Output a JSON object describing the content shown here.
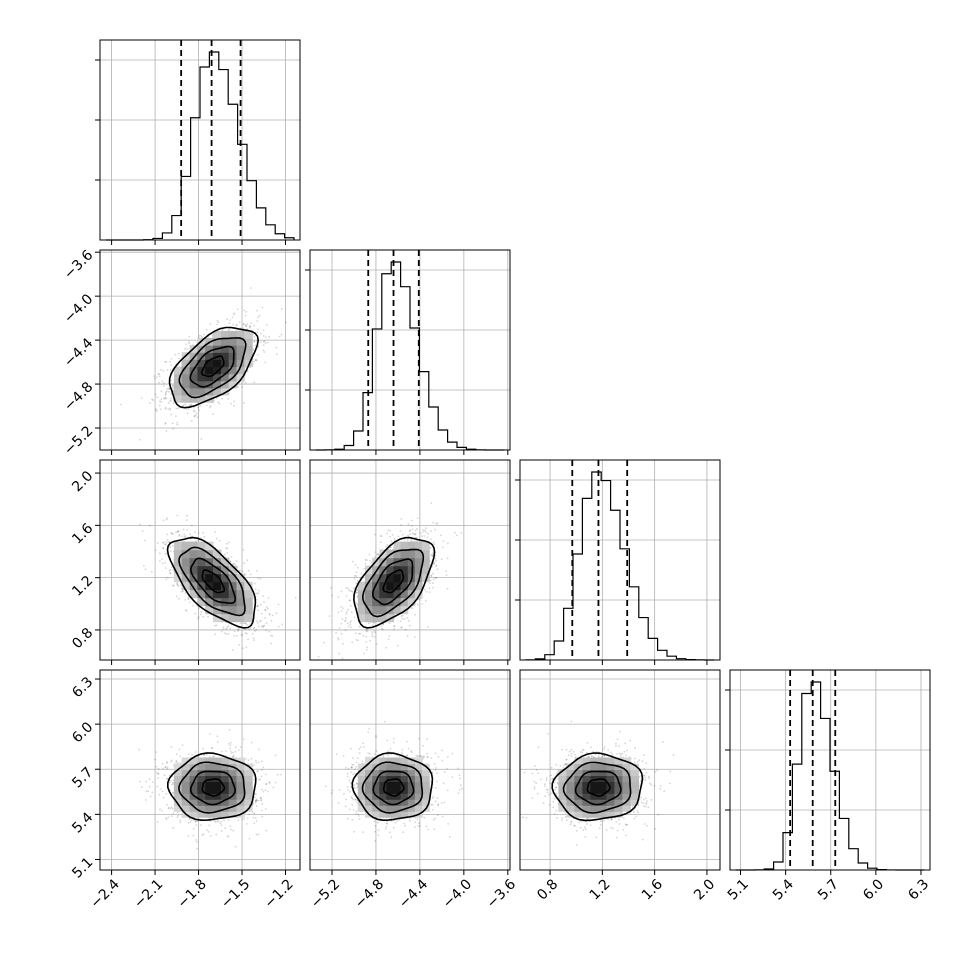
{
  "chart_data": {
    "type": "corner",
    "grid": true,
    "parameters": [
      {
        "mean": -1.7,
        "sd": 0.15,
        "quantiles": [
          -1.92,
          -1.71,
          -1.51
        ],
        "range": [
          -2.48,
          -1.1
        ],
        "ticks": [
          -2.4,
          -2.1,
          -1.8,
          -1.5,
          -1.2
        ],
        "tick_labels": [
          "−2.4",
          "−2.1",
          "−1.8",
          "−1.5",
          "−1.2"
        ]
      },
      {
        "mean": -4.64,
        "sd": 0.18,
        "quantiles": [
          -4.87,
          -4.64,
          -4.41
        ],
        "range": [
          -5.4,
          -3.58
        ],
        "ticks": [
          -5.2,
          -4.8,
          -4.4,
          -4.0,
          -3.6
        ],
        "tick_labels": [
          "−5.2",
          "−4.8",
          "−4.4",
          "−4.0",
          "−3.6"
        ]
      },
      {
        "mean": 1.17,
        "sd": 0.17,
        "quantiles": [
          0.97,
          1.17,
          1.39
        ],
        "range": [
          0.57,
          2.1
        ],
        "ticks": [
          0.8,
          1.2,
          1.6,
          2.0
        ],
        "tick_labels": [
          "0.8",
          "1.2",
          "1.6",
          "2.0"
        ]
      },
      {
        "mean": 5.58,
        "sd": 0.11,
        "quantiles": [
          5.43,
          5.58,
          5.73
        ],
        "range": [
          5.03,
          6.36
        ],
        "ticks": [
          5.1,
          5.4,
          5.7,
          6.0,
          6.3
        ],
        "tick_labels": [
          "5.1",
          "5.4",
          "5.7",
          "6.0",
          "6.3"
        ]
      }
    ],
    "correlations": [
      [
        0,
        1,
        0.55
      ],
      [
        0,
        2,
        -0.65
      ],
      [
        1,
        2,
        0.55
      ],
      [
        0,
        3,
        0.0
      ],
      [
        1,
        3,
        0.0
      ],
      [
        2,
        3,
        0.05
      ]
    ],
    "quantile_lines": "dashed",
    "contour_levels": 4
  }
}
